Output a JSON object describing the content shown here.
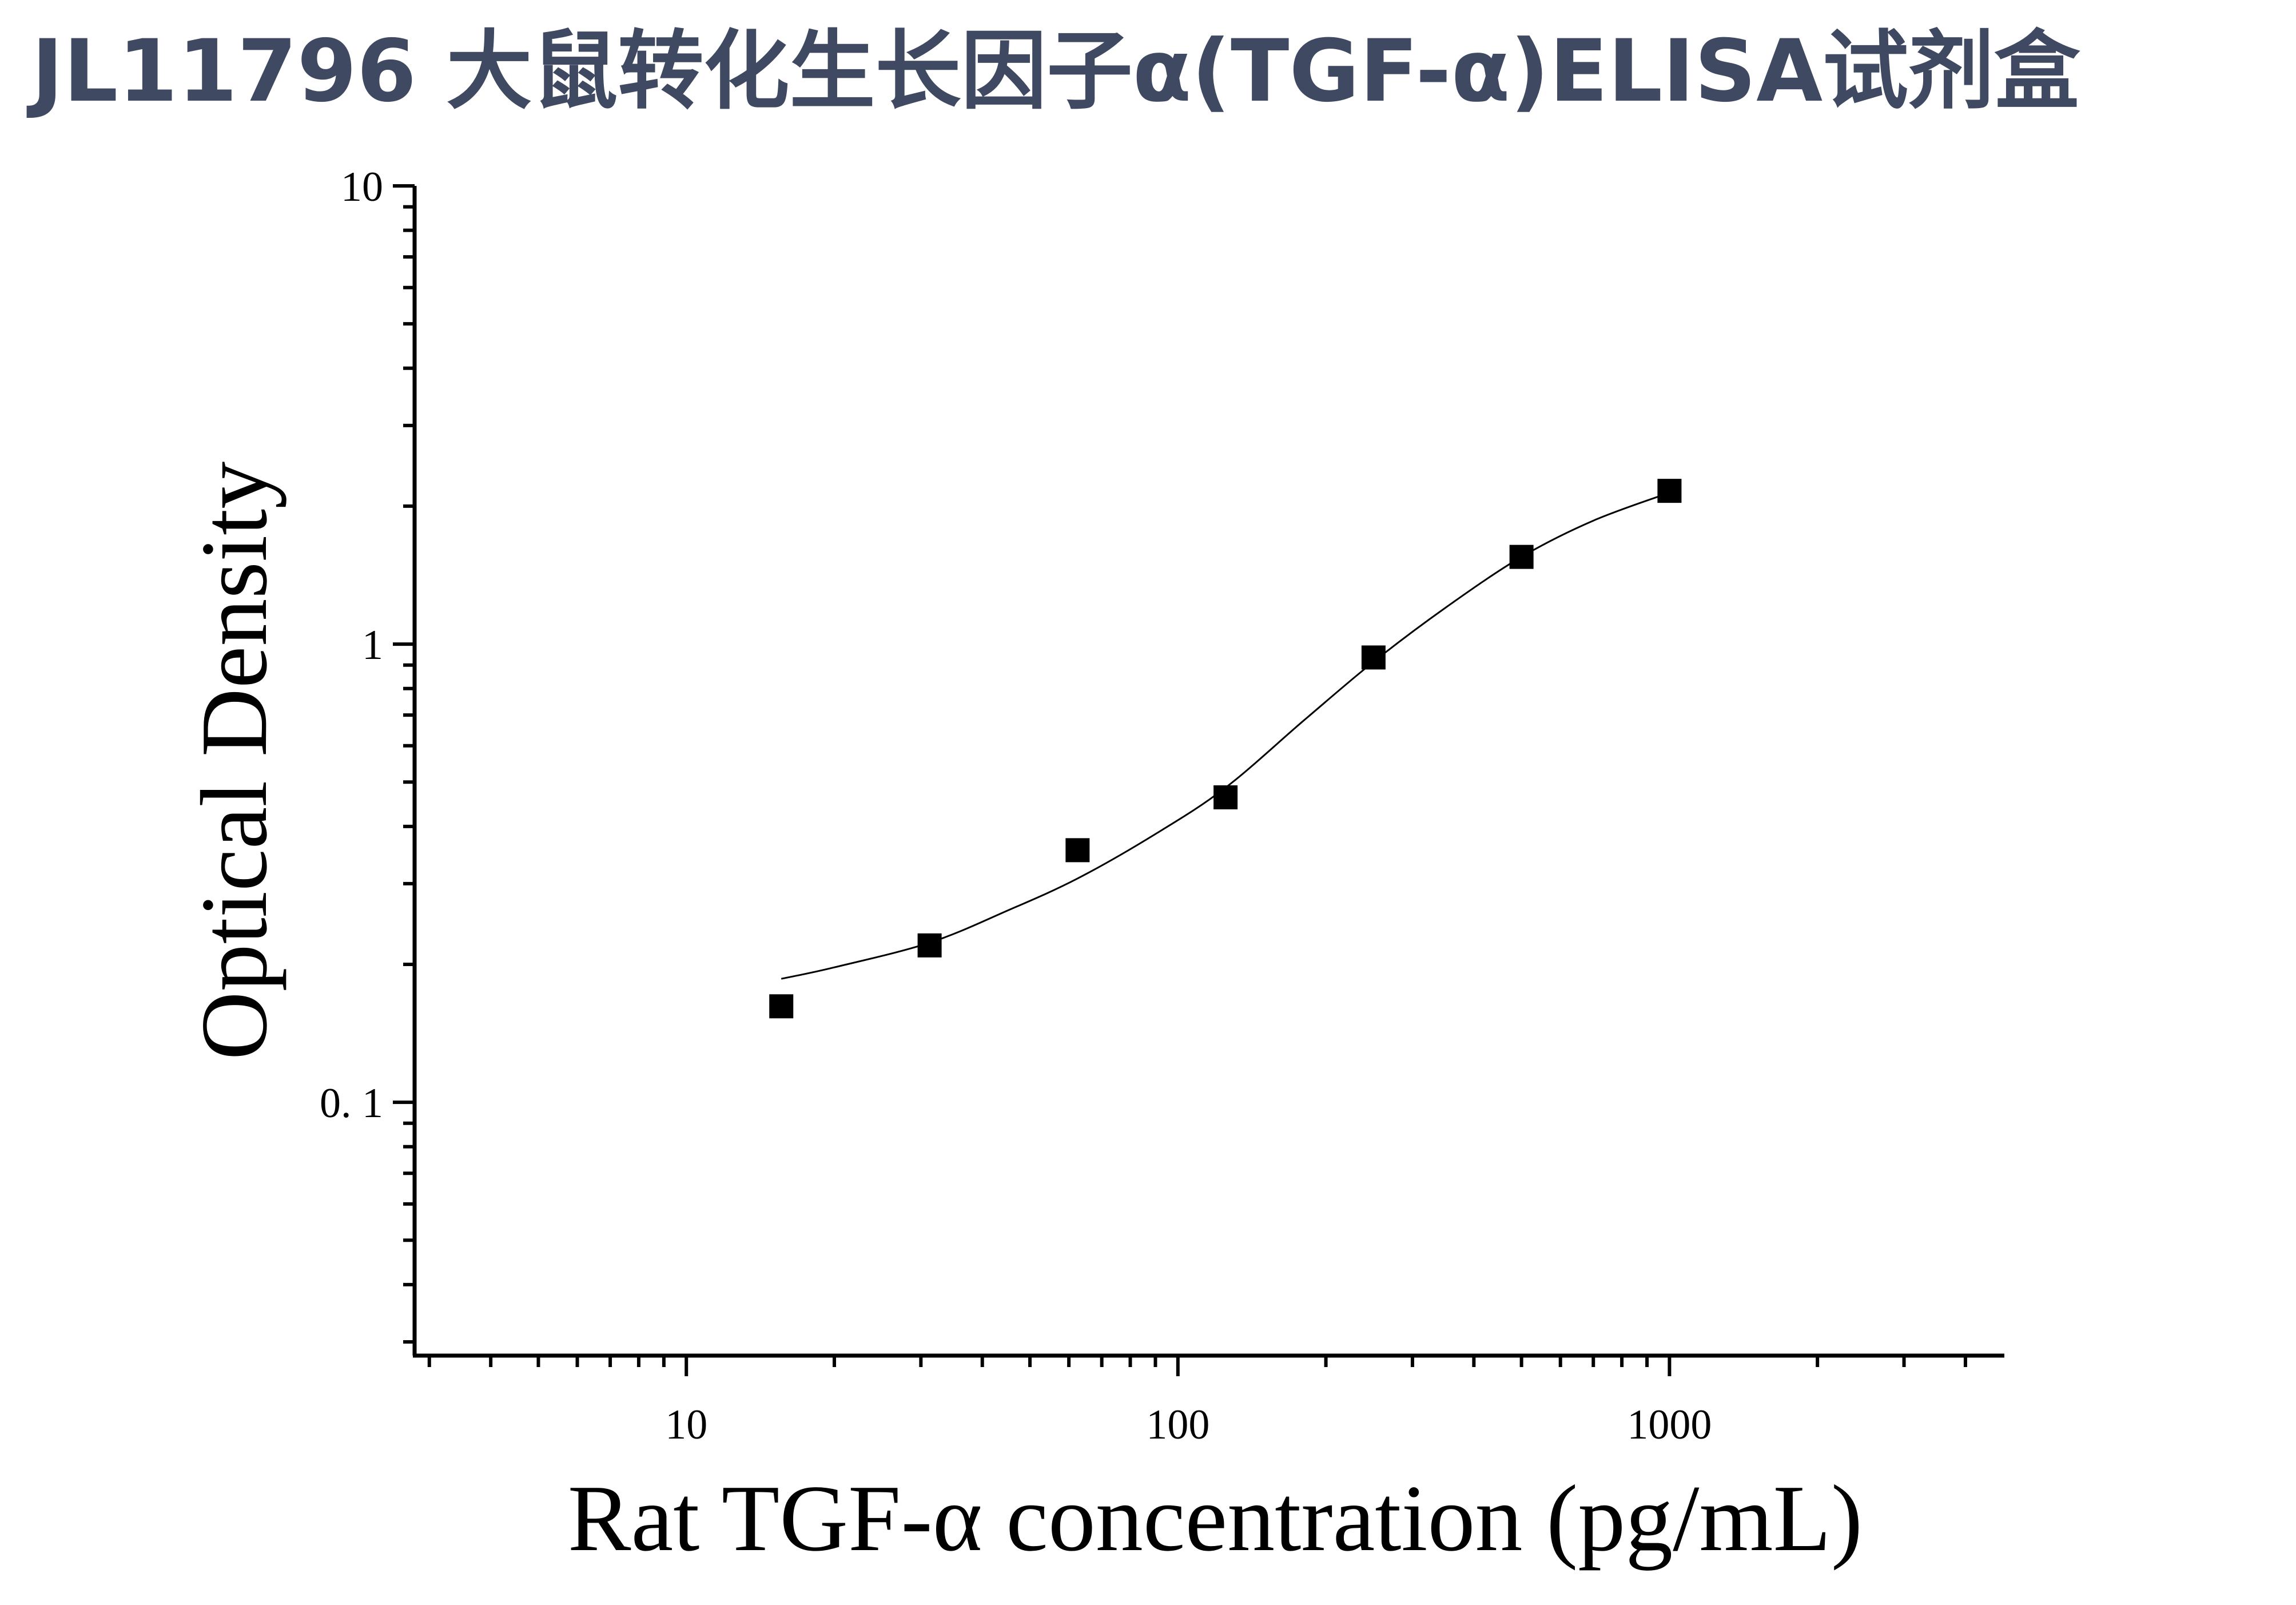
{
  "title": "JL11796 大鼠转化生长因子α(TGF-α)ELISA试剂盒",
  "chart_data": {
    "type": "scatter",
    "title": "JL11796 大鼠转化生长因子α(TGF-α)ELISA试剂盒",
    "xlabel": "Rat TGF-α concentration (pg/mL)",
    "ylabel": "Optical Density",
    "xscale": "log",
    "yscale": "log",
    "xlim": [
      2.8,
      4800
    ],
    "ylim": [
      0.028,
      10
    ],
    "grid": false,
    "legend": "none",
    "x_ticks": [
      {
        "value": 10,
        "label": "10"
      },
      {
        "value": 100,
        "label": "100"
      },
      {
        "value": 1000,
        "label": "1000"
      }
    ],
    "y_ticks": [
      {
        "value": 0.1,
        "label": "0. 1"
      },
      {
        "value": 1,
        "label": "1"
      },
      {
        "value": 10,
        "label": "10"
      }
    ],
    "series": [
      {
        "type": "scatter",
        "marker": "square",
        "color": "#000000",
        "x": [
          15.6,
          31.25,
          62.5,
          125,
          250,
          500,
          1000
        ],
        "y": [
          0.162,
          0.22,
          0.355,
          0.463,
          0.935,
          1.55,
          2.16
        ]
      },
      {
        "type": "line",
        "color": "#000000",
        "x": [
          15.6,
          20,
          31.25,
          45,
          62.5,
          90,
          125,
          180,
          250,
          350,
          500,
          700,
          1000
        ],
        "y": [
          0.186,
          0.197,
          0.223,
          0.262,
          0.308,
          0.385,
          0.486,
          0.68,
          0.915,
          1.2,
          1.55,
          1.86,
          2.14
        ]
      }
    ]
  }
}
